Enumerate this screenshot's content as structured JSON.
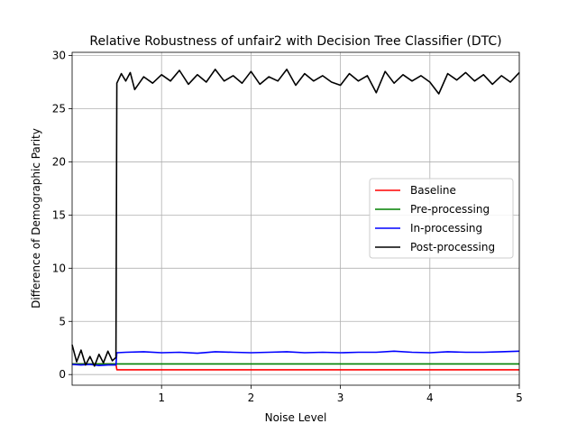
{
  "chart_data": {
    "type": "line",
    "title": "Relative Robustness of unfair2 with Decision Tree Classifier (DTC)",
    "xlabel": "Noise Level",
    "ylabel": "Difference of Demographic Parity",
    "xlim": [
      0.0,
      5.0
    ],
    "ylim": [
      -1.0,
      30.3
    ],
    "xticks": [
      1,
      2,
      3,
      4,
      5
    ],
    "xtick_labels": [
      "1",
      "2",
      "3",
      "4",
      "5"
    ],
    "yticks": [
      0,
      5,
      10,
      15,
      20,
      25,
      30
    ],
    "ytick_labels": [
      "0",
      "5",
      "10",
      "15",
      "20",
      "25",
      "30"
    ],
    "grid": true,
    "legend": "center-right",
    "series": [
      {
        "name": "Baseline",
        "color": "#ff0000",
        "x": [
          0.0,
          0.49,
          0.5,
          5.0
        ],
        "y": [
          1.0,
          1.0,
          0.45,
          0.45
        ]
      },
      {
        "name": "Pre-processing",
        "color": "#008000",
        "x": [
          0.0,
          5.0
        ],
        "y": [
          1.0,
          1.0
        ]
      },
      {
        "name": "In-processing",
        "color": "#0000ff",
        "x": [
          0.0,
          0.1,
          0.2,
          0.3,
          0.4,
          0.49,
          0.5,
          0.6,
          0.8,
          1.0,
          1.2,
          1.4,
          1.6,
          1.8,
          2.0,
          2.2,
          2.4,
          2.6,
          2.8,
          3.0,
          3.2,
          3.4,
          3.6,
          3.8,
          4.0,
          4.2,
          4.4,
          4.6,
          4.8,
          5.0
        ],
        "y": [
          0.95,
          0.9,
          0.95,
          0.85,
          0.9,
          0.9,
          2.05,
          2.1,
          2.15,
          2.05,
          2.1,
          2.0,
          2.15,
          2.1,
          2.05,
          2.1,
          2.15,
          2.05,
          2.1,
          2.05,
          2.1,
          2.1,
          2.2,
          2.1,
          2.05,
          2.15,
          2.1,
          2.1,
          2.15,
          2.2
        ]
      },
      {
        "name": "Post-processing",
        "color": "#000000",
        "x": [
          0.0,
          0.05,
          0.1,
          0.15,
          0.2,
          0.25,
          0.3,
          0.35,
          0.4,
          0.45,
          0.49,
          0.5,
          0.55,
          0.6,
          0.65,
          0.7,
          0.8,
          0.9,
          1.0,
          1.1,
          1.2,
          1.3,
          1.4,
          1.5,
          1.6,
          1.7,
          1.8,
          1.9,
          2.0,
          2.1,
          2.2,
          2.3,
          2.4,
          2.5,
          2.6,
          2.7,
          2.8,
          2.9,
          3.0,
          3.1,
          3.2,
          3.3,
          3.4,
          3.5,
          3.6,
          3.7,
          3.8,
          3.9,
          4.0,
          4.1,
          4.2,
          4.3,
          4.4,
          4.5,
          4.6,
          4.7,
          4.8,
          4.9,
          5.0
        ],
        "y": [
          2.8,
          1.2,
          2.3,
          0.9,
          1.7,
          0.8,
          1.9,
          1.1,
          2.2,
          1.3,
          1.6,
          27.4,
          28.3,
          27.6,
          28.4,
          26.8,
          28.0,
          27.4,
          28.2,
          27.6,
          28.6,
          27.3,
          28.2,
          27.5,
          28.7,
          27.6,
          28.1,
          27.4,
          28.5,
          27.3,
          28.0,
          27.6,
          28.7,
          27.2,
          28.3,
          27.6,
          28.1,
          27.5,
          27.2,
          28.3,
          27.6,
          28.1,
          26.5,
          28.5,
          27.4,
          28.2,
          27.6,
          28.1,
          27.5,
          26.4,
          28.3,
          27.7,
          28.4,
          27.6,
          28.2,
          27.3,
          28.1,
          27.5,
          28.4
        ]
      }
    ]
  }
}
